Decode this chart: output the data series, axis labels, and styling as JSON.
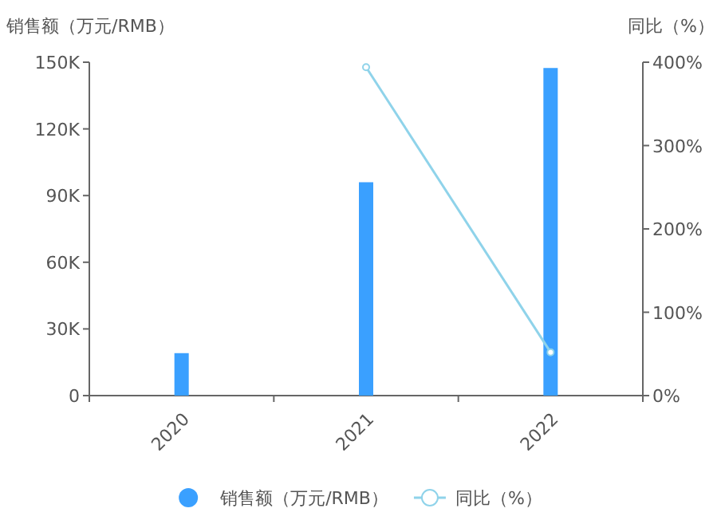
{
  "chart_data": {
    "type": "bar",
    "ylabel": "销售额（万元/RMB）",
    "y2label": "同比（%）",
    "categories": [
      "2020",
      "2021",
      "2022"
    ],
    "series": [
      {
        "name": "销售额（万元/RMB）",
        "color": "#3aa0ff",
        "values": [
          19100,
          96000,
          147400
        ]
      },
      {
        "name": "同比（%）",
        "type": "line",
        "axis": "y2",
        "color": "#8fd3ea",
        "marker": "circle",
        "values": [
          null,
          394,
          52
        ]
      }
    ],
    "ylim": [
      0,
      150000
    ],
    "yticks": [
      {
        "value": 0,
        "label": "0"
      },
      {
        "value": 30000,
        "label": "30K"
      },
      {
        "value": 60000,
        "label": "60K"
      },
      {
        "value": 90000,
        "label": "90K"
      },
      {
        "value": 120000,
        "label": "120K"
      },
      {
        "value": 150000,
        "label": "150K"
      }
    ],
    "y2lim": [
      0,
      400
    ],
    "y2ticks": [
      {
        "value": 0,
        "label": "0%"
      },
      {
        "value": 100,
        "label": "100%"
      },
      {
        "value": 200,
        "label": "200%"
      },
      {
        "value": 300,
        "label": "300%"
      },
      {
        "value": 400,
        "label": "400%"
      }
    ],
    "grid": false,
    "legend": "bottom"
  }
}
